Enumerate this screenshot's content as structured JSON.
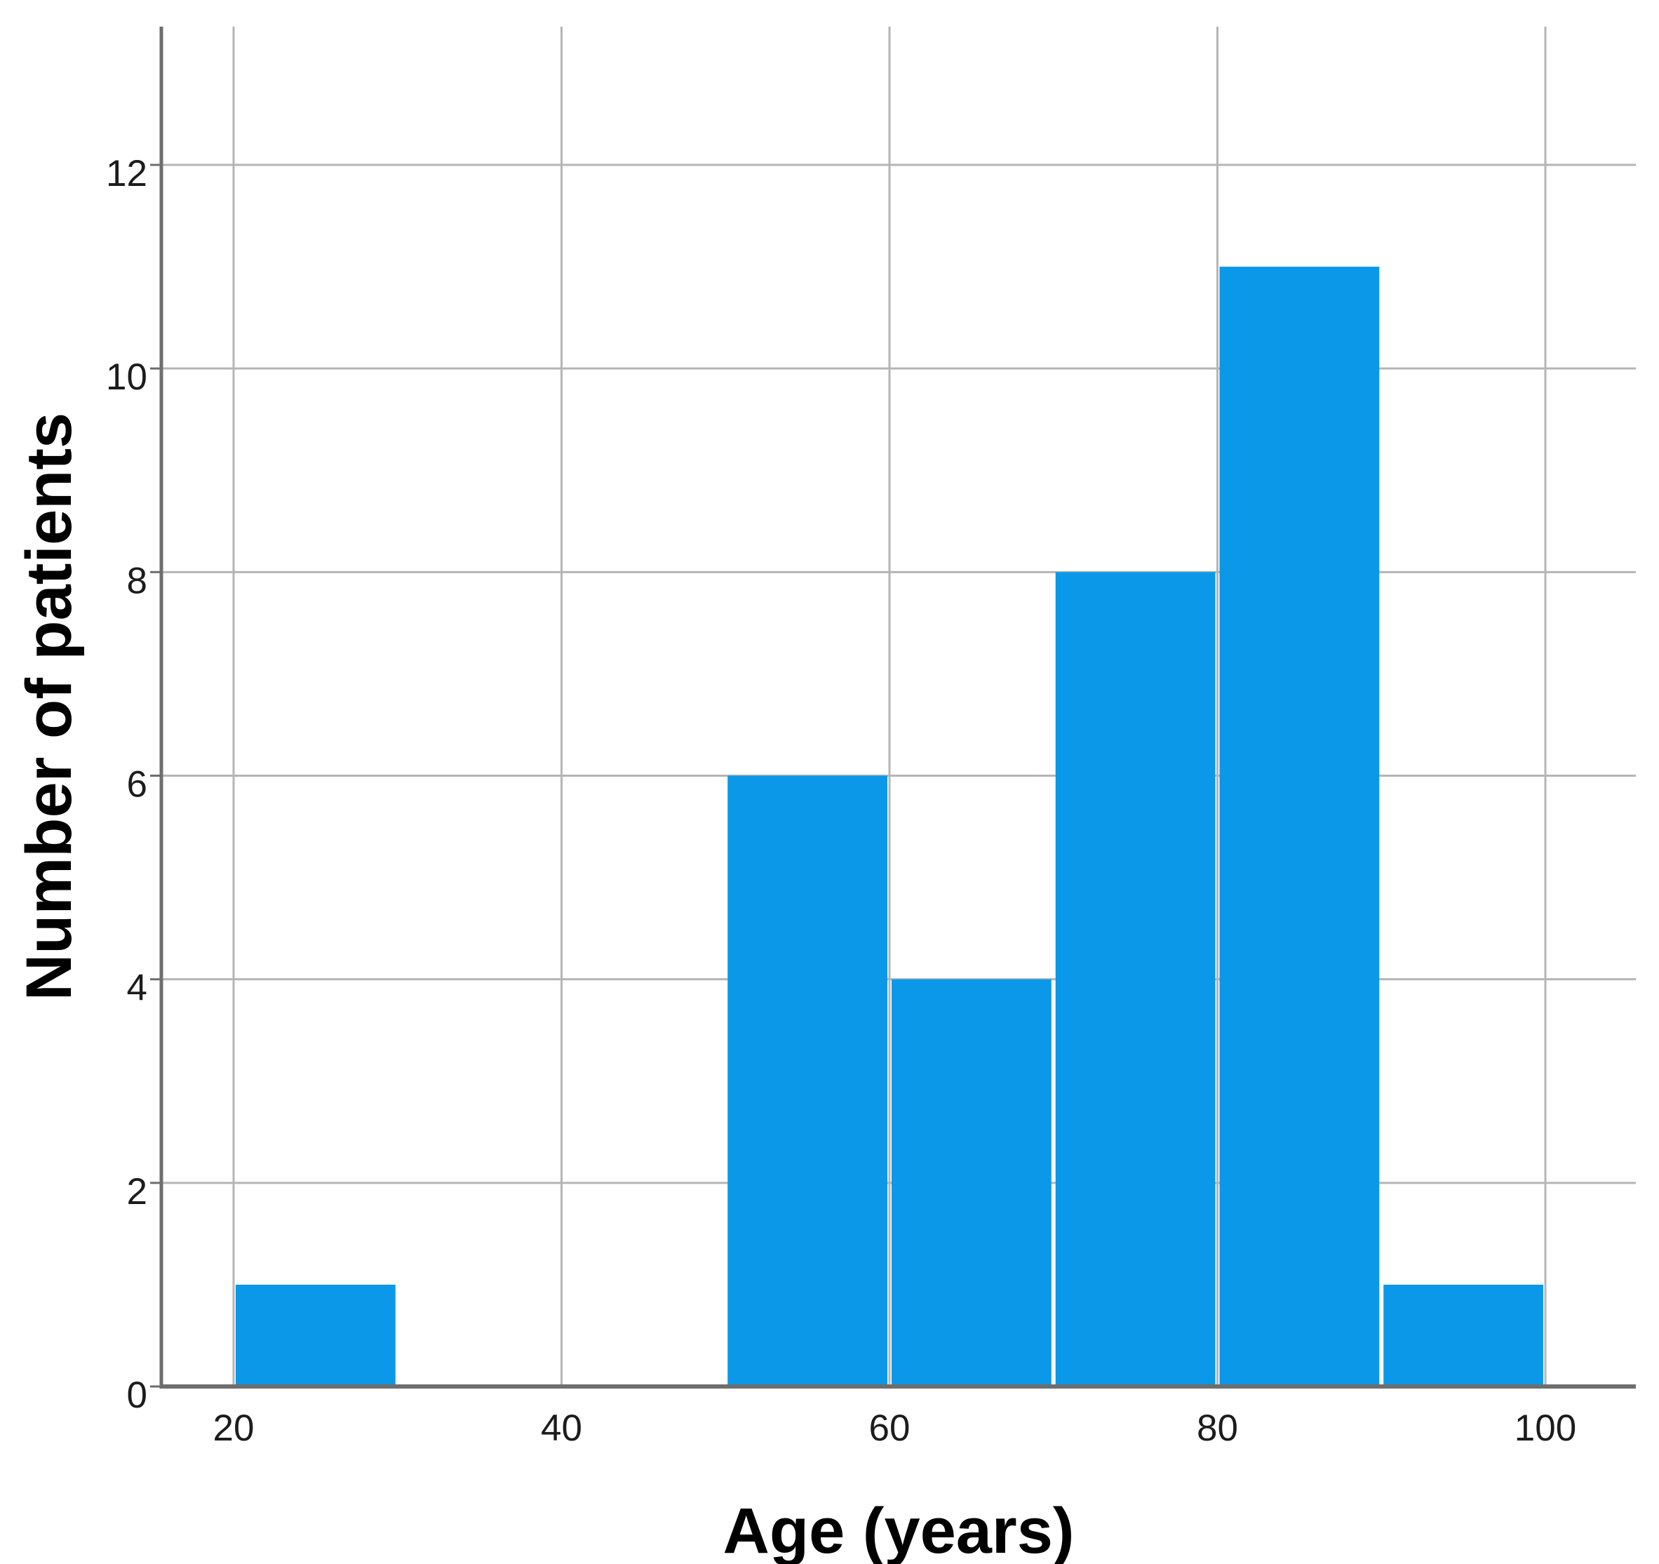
{
  "figure": {
    "background": "#ffffff"
  },
  "chart_data": {
    "type": "bar",
    "subtype": "histogram",
    "title": "",
    "xlabel": "Age (years)",
    "ylabel": "Number of patients",
    "bins": [
      {
        "x0": 20,
        "x1": 30,
        "count": 1
      },
      {
        "x0": 50,
        "x1": 60,
        "count": 6
      },
      {
        "x0": 60,
        "x1": 70,
        "count": 4
      },
      {
        "x0": 70,
        "x1": 80,
        "count": 8
      },
      {
        "x0": 80,
        "x1": 90,
        "count": 11
      },
      {
        "x0": 90,
        "x1": 100,
        "count": 1
      }
    ],
    "x_ticks": [
      20,
      40,
      60,
      80,
      100
    ],
    "y_ticks": [
      0,
      2,
      4,
      6,
      8,
      10,
      12
    ],
    "xlim": [
      15.6,
      105.8
    ],
    "ylim": [
      0,
      13.4
    ],
    "grid": true,
    "legend": null,
    "colors": {
      "bar_fill": "#0b98e8",
      "gridline": "#b5b5b5",
      "axis_line": "#6e6e6e",
      "tick_label": "#1c1c1c",
      "axis_title": "#000000"
    }
  }
}
